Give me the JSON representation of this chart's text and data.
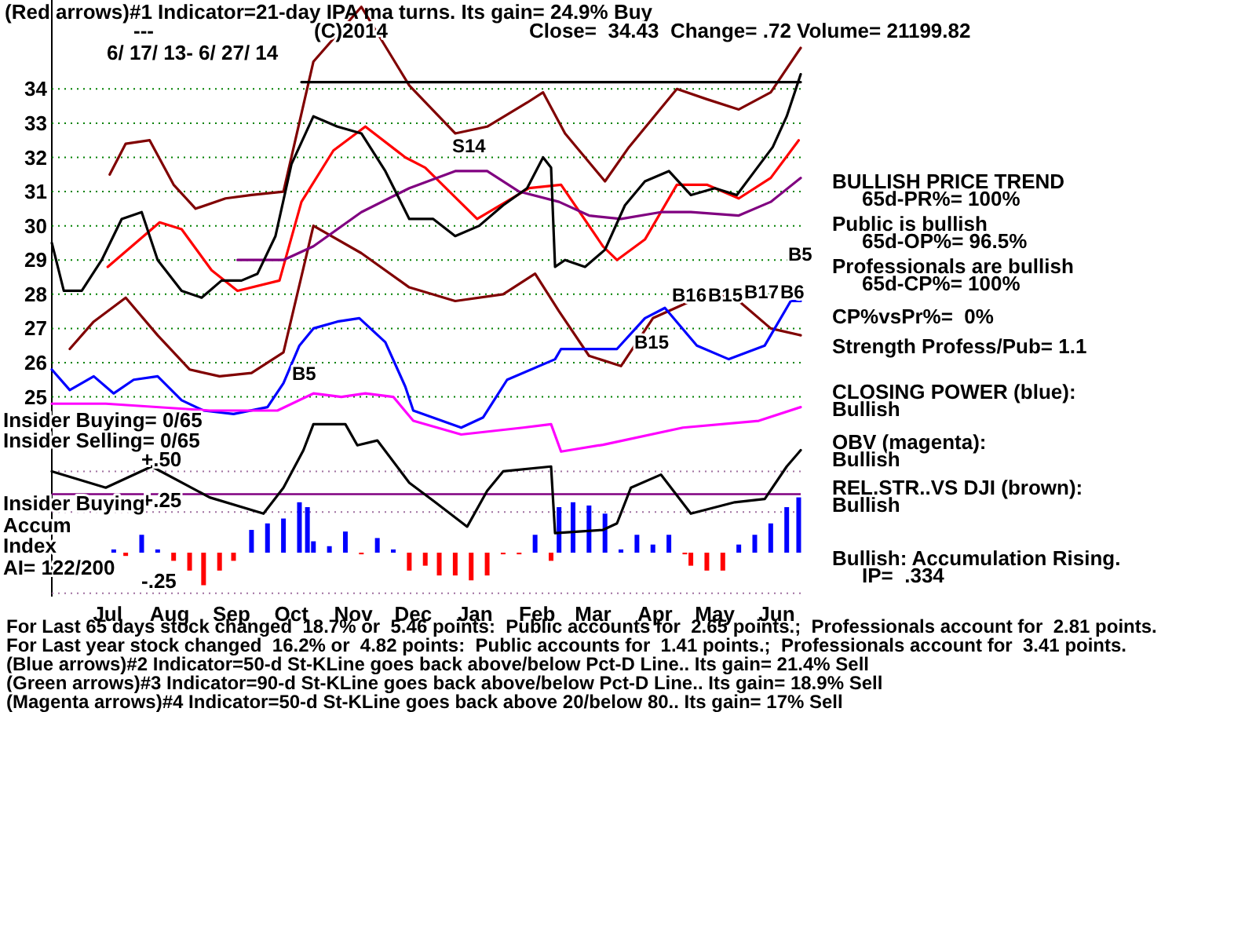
{
  "chart_data": [
    {
      "type": "line",
      "title": "(Red arrows)#1 Indicator=21-day IPA ma turns. Its gain= 24.9% Buy",
      "subtitle": "6/ 17/ 13- 6/ 27/ 14",
      "xlim": [
        "2013-06-17",
        "2014-06-27"
      ],
      "ylim": [
        23.2,
        36.6
      ],
      "yticks": [
        25,
        26,
        27,
        28,
        29,
        30,
        31,
        32,
        33,
        34
      ],
      "grid": "y",
      "tick_labels": "y",
      "series": [
        {
          "color": "#800000",
          "x": [
            "2013-07-16",
            "2013-07-24",
            "2013-08-05",
            "2013-08-17",
            "2013-08-28",
            "2013-09-12",
            "2013-09-25",
            "2013-10-11",
            "2013-10-26",
            "2013-11-19",
            "2013-12-13",
            "2014-01-05",
            "2014-01-21",
            "2014-02-10",
            "2014-02-18",
            "2014-03-01",
            "2014-03-21",
            "2014-04-02",
            "2014-04-26",
            "2014-05-11",
            "2014-05-27",
            "2014-06-12",
            "2014-06-27"
          ],
          "values": [
            31.5,
            32.4,
            32.5,
            31.2,
            30.5,
            30.8,
            30.9,
            31.0,
            34.8,
            36.4,
            34.1,
            32.7,
            32.9,
            33.6,
            33.9,
            32.7,
            31.3,
            32.3,
            34.0,
            33.7,
            33.4,
            33.9,
            35.2
          ]
        },
        {
          "color": "#800000",
          "x": [
            "2013-06-26",
            "2013-07-08",
            "2013-07-24",
            "2013-08-09",
            "2013-08-25",
            "2013-09-09",
            "2013-09-25",
            "2013-10-11",
            "2013-10-26",
            "2013-11-19",
            "2013-12-13",
            "2014-01-05",
            "2014-01-29",
            "2014-02-14",
            "2014-02-26",
            "2014-03-13",
            "2014-03-29",
            "2014-04-14",
            "2014-05-03",
            "2014-05-23",
            "2014-06-12",
            "2014-06-27"
          ],
          "values": [
            26.4,
            27.2,
            27.9,
            26.8,
            25.8,
            25.6,
            25.7,
            26.3,
            30.0,
            29.2,
            28.2,
            27.8,
            28.0,
            28.6,
            27.5,
            26.2,
            25.9,
            27.3,
            27.8,
            28.0,
            27.0,
            26.8
          ]
        },
        {
          "color": "#ff0000",
          "x": [
            "2013-07-15",
            "2013-08-10",
            "2013-08-21",
            "2013-09-05",
            "2013-09-18",
            "2013-10-09",
            "2013-10-20",
            "2013-11-05",
            "2013-11-21",
            "2013-12-11",
            "2013-12-21",
            "2014-01-16",
            "2014-02-11",
            "2014-02-27",
            "2014-03-20",
            "2014-03-27",
            "2014-04-10",
            "2014-04-26",
            "2014-05-11",
            "2014-05-27",
            "2014-06-12",
            "2014-06-26"
          ],
          "values": [
            28.8,
            30.1,
            29.9,
            28.7,
            28.1,
            28.4,
            30.7,
            32.2,
            32.9,
            32.0,
            31.7,
            30.2,
            31.1,
            31.2,
            29.4,
            29.0,
            29.6,
            31.2,
            31.2,
            30.8,
            31.4,
            32.5
          ]
        },
        {
          "color": "#800080",
          "x": [
            "2013-09-18",
            "2013-10-11",
            "2013-10-26",
            "2013-11-19",
            "2013-12-13",
            "2014-01-05",
            "2014-01-21",
            "2014-02-06",
            "2014-02-26",
            "2014-03-13",
            "2014-03-29",
            "2014-04-18",
            "2014-05-03",
            "2014-05-27",
            "2014-06-12",
            "2014-06-27"
          ],
          "values": [
            29.0,
            29.0,
            29.4,
            30.4,
            31.1,
            31.6,
            31.6,
            31.0,
            30.7,
            30.3,
            30.2,
            30.4,
            30.4,
            30.3,
            30.7,
            31.4
          ]
        },
        {
          "color": "#0000ff",
          "x": [
            "2013-06-17",
            "2013-06-26",
            "2013-07-08",
            "2013-07-18",
            "2013-07-28",
            "2013-08-09",
            "2013-08-21",
            "2013-09-01",
            "2013-09-16",
            "2013-10-03",
            "2013-10-11",
            "2013-10-19",
            "2013-10-26",
            "2013-11-07",
            "2013-11-18",
            "2013-12-01",
            "2013-12-11",
            "2013-12-15",
            "2014-01-08",
            "2014-01-19",
            "2014-01-31",
            "2014-02-24",
            "2014-02-27",
            "2014-03-27",
            "2014-04-10",
            "2014-04-20",
            "2014-05-06",
            "2014-05-22",
            "2014-06-09",
            "2014-06-22",
            "2014-06-27"
          ],
          "values": [
            25.8,
            25.2,
            25.6,
            25.1,
            25.5,
            25.6,
            24.9,
            24.6,
            24.5,
            24.7,
            25.4,
            26.5,
            27.0,
            27.2,
            27.3,
            26.6,
            25.3,
            24.6,
            24.1,
            24.4,
            25.5,
            26.1,
            26.4,
            26.4,
            27.3,
            27.6,
            26.5,
            26.1,
            26.5,
            27.8,
            27.8
          ]
        },
        {
          "color": "#ff00ff",
          "x": [
            "2013-06-17",
            "2013-07-14",
            "2013-09-04",
            "2013-10-08",
            "2013-10-26",
            "2013-11-09",
            "2013-11-21",
            "2013-12-05",
            "2013-12-15",
            "2014-01-08",
            "2014-02-08",
            "2014-02-22",
            "2014-02-27",
            "2014-03-20",
            "2014-04-29",
            "2014-06-06",
            "2014-06-27"
          ],
          "values": [
            24.8,
            24.8,
            24.6,
            24.6,
            25.1,
            25.0,
            25.1,
            25.0,
            24.3,
            23.9,
            24.1,
            24.2,
            23.4,
            23.6,
            24.1,
            24.3,
            24.7
          ]
        },
        {
          "color": "#000000",
          "x": [
            "2013-06-17",
            "2013-06-23",
            "2013-07-02",
            "2013-07-12",
            "2013-07-22",
            "2013-08-01",
            "2013-08-09",
            "2013-08-21",
            "2013-08-31",
            "2013-09-10",
            "2013-09-20",
            "2013-09-28",
            "2013-10-07",
            "2013-10-15",
            "2013-10-26",
            "2013-11-07",
            "2013-11-19",
            "2013-12-01",
            "2013-12-13",
            "2013-12-25",
            "2014-01-05",
            "2014-01-17",
            "2014-01-29",
            "2014-02-10",
            "2014-02-18",
            "2014-02-22",
            "2014-02-24",
            "2014-03-01",
            "2014-03-11",
            "2014-03-21",
            "2014-03-31",
            "2014-04-10",
            "2014-04-22",
            "2014-05-03",
            "2014-05-15",
            "2014-05-26",
            "2014-06-04",
            "2014-06-13",
            "2014-06-20",
            "2014-06-24",
            "2014-06-27"
          ],
          "values": [
            29.5,
            28.1,
            28.1,
            29.0,
            30.2,
            30.4,
            29.0,
            28.1,
            27.9,
            28.4,
            28.4,
            28.6,
            29.7,
            31.8,
            33.2,
            32.9,
            32.7,
            31.6,
            30.2,
            30.2,
            29.7,
            30.0,
            30.6,
            31.1,
            32.0,
            31.7,
            28.8,
            29.0,
            28.8,
            29.3,
            30.6,
            31.3,
            31.6,
            30.9,
            31.1,
            30.9,
            31.6,
            32.3,
            33.2,
            33.9,
            34.43
          ]
        },
        {
          "color": "#000000",
          "x": [
            "2013-10-20",
            "2014-06-27"
          ],
          "values": [
            34.2,
            34.2
          ]
        }
      ],
      "annotations": [
        "---",
        "(C)2014",
        "Close=  34.43  Change= .72 Volume= 21199.82",
        "BULLISH PRICE TREND",
        "65d-PR%= 100%",
        "Public is bullish",
        "65d-OP%= 96.5%",
        "Professionals are bullish",
        "65d-CP%= 100%",
        "CP%vsPr%=  0%",
        "Strength Profess/Pub= 1.1",
        "CLOSING POWER (blue):",
        "Bullish",
        "OBV (magenta):",
        "Bullish",
        "REL.STR..VS DJI (brown):",
        "Bullish",
        "Bullish: Accumulation Rising.",
        "IP=  .334",
        "For Last 65 days stock changed  18.7% or  5.46 points:  Public accounts for  2.65 points.;  Professionals account for  2.81 points.",
        "For Last year stock changed  16.2% or  4.82 points:  Public accounts for  1.41 points.;  Professionals account for  3.41 points.",
        "(Blue arrows)#2 Indicator=50-d St-KLine goes back above/below Pct-D Line.. Its gain= 21.4% Sell",
        "(Green arrows)#3 Indicator=90-d St-KLine goes back above/below Pct-D Line.. Its gain= 18.9% Sell",
        "(Magenta arrows)#4 Indicator=50-d St-KLine goes back above 20/below 80.. Its gain= 17% Sell",
        "S14",
        "B5",
        "B15",
        "B16",
        "B15",
        "B17",
        "B6",
        "B5"
      ]
    },
    {
      "type": "bar",
      "xlim": [
        "2013-06-17",
        "2014-06-27"
      ],
      "ylim": [
        -0.27,
        0.84
      ],
      "yticks": [
        {
          "value": 0.5,
          "label": "+.50"
        },
        {
          "value": 0.25,
          "label": "+.25"
        },
        {
          "value": -0.25,
          "label": "-.25"
        }
      ],
      "grid": "y",
      "xticks": [
        {
          "value": "2013-07-15",
          "label": "Jul"
        },
        {
          "value": "2013-08-15",
          "label": "Aug"
        },
        {
          "value": "2013-09-15",
          "label": "Sep"
        },
        {
          "value": "2013-10-15",
          "label": "Oct"
        },
        {
          "value": "2013-11-15",
          "label": "Nov"
        },
        {
          "value": "2013-12-15",
          "label": "Dec"
        },
        {
          "value": "2014-01-15",
          "label": "Jan"
        },
        {
          "value": "2014-02-15",
          "label": "Feb"
        },
        {
          "value": "2014-03-15",
          "label": "Mar"
        },
        {
          "value": "2014-04-15",
          "label": "Apr"
        },
        {
          "value": "2014-05-15",
          "label": "May"
        },
        {
          "value": "2014-06-15",
          "label": "Jun"
        }
      ],
      "ref_lines": [
        {
          "axis": "y",
          "value": 0.36,
          "color": "#800080"
        }
      ],
      "series": [
        {
          "x": [
            "2013-07-18",
            "2013-07-24",
            "2013-08-01",
            "2013-08-09",
            "2013-08-17",
            "2013-08-25",
            "2013-09-01",
            "2013-09-09",
            "2013-09-16",
            "2013-09-25",
            "2013-10-03",
            "2013-10-11",
            "2013-10-19",
            "2013-10-23",
            "2013-10-26",
            "2013-11-03",
            "2013-11-11",
            "2013-11-19",
            "2013-11-27",
            "2013-12-05",
            "2013-12-13",
            "2013-12-21",
            "2013-12-28",
            "2014-01-05",
            "2014-01-13",
            "2014-01-21",
            "2014-01-29",
            "2014-02-06",
            "2014-02-14",
            "2014-02-22",
            "2014-02-26",
            "2014-03-05",
            "2014-03-13",
            "2014-03-21",
            "2014-03-29",
            "2014-04-06",
            "2014-04-14",
            "2014-04-22",
            "2014-04-30",
            "2014-05-03",
            "2014-05-11",
            "2014-05-19",
            "2014-05-27",
            "2014-06-04",
            "2014-06-12",
            "2014-06-20",
            "2014-06-26"
          ],
          "values": [
            0.02,
            -0.02,
            0.11,
            0.02,
            -0.05,
            -0.11,
            -0.2,
            -0.11,
            -0.05,
            0.14,
            0.18,
            0.21,
            0.31,
            0.28,
            0.07,
            0.04,
            0.13,
            -0.01,
            0.09,
            0.02,
            -0.11,
            -0.08,
            -0.14,
            -0.14,
            -0.17,
            -0.14,
            -0.01,
            -0.01,
            0.11,
            -0.05,
            0.28,
            0.31,
            0.29,
            0.24,
            0.02,
            0.11,
            0.05,
            0.11,
            -0.01,
            -0.08,
            -0.11,
            -0.11,
            0.05,
            0.11,
            0.18,
            0.28,
            0.34
          ],
          "colors": [
            "#0000ff",
            "#ff0000",
            "#0000ff",
            "#0000ff",
            "#ff0000",
            "#ff0000",
            "#ff0000",
            "#ff0000",
            "#ff0000",
            "#0000ff",
            "#0000ff",
            "#0000ff",
            "#0000ff",
            "#0000ff",
            "#0000ff",
            "#0000ff",
            "#0000ff",
            "#ff0000",
            "#0000ff",
            "#0000ff",
            "#ff0000",
            "#ff0000",
            "#ff0000",
            "#ff0000",
            "#ff0000",
            "#ff0000",
            "#ff0000",
            "#ff0000",
            "#0000ff",
            "#ff0000",
            "#0000ff",
            "#0000ff",
            "#0000ff",
            "#0000ff",
            "#0000ff",
            "#0000ff",
            "#0000ff",
            "#0000ff",
            "#ff0000",
            "#ff0000",
            "#ff0000",
            "#ff0000",
            "#0000ff",
            "#0000ff",
            "#0000ff",
            "#0000ff",
            "#0000ff"
          ]
        },
        {
          "type": "line",
          "color": "#000000",
          "x": [
            "2013-06-17",
            "2013-07-14",
            "2013-08-06",
            "2013-09-04",
            "2013-10-01",
            "2013-10-11",
            "2013-10-21",
            "2013-10-26",
            "2013-11-11",
            "2013-11-17",
            "2013-11-27",
            "2013-12-13",
            "2013-12-26",
            "2014-01-11",
            "2014-01-21",
            "2014-01-29",
            "2014-02-22",
            "2014-02-24",
            "2014-03-20",
            "2014-03-27",
            "2014-04-03",
            "2014-04-18",
            "2014-05-03",
            "2014-05-25",
            "2014-06-09",
            "2014-06-20",
            "2014-06-27"
          ],
          "values": [
            0.5,
            0.4,
            0.53,
            0.34,
            0.24,
            0.4,
            0.63,
            0.79,
            0.79,
            0.66,
            0.69,
            0.43,
            0.31,
            0.16,
            0.38,
            0.5,
            0.53,
            0.12,
            0.14,
            0.18,
            0.4,
            0.48,
            0.24,
            0.31,
            0.33,
            0.53,
            0.63
          ]
        }
      ],
      "annotations": [
        "Insider Buying= 0/65",
        "Insider Selling= 0/65",
        "Insider Buying",
        "Accum",
        "Index",
        "AI= 122/200"
      ]
    }
  ]
}
